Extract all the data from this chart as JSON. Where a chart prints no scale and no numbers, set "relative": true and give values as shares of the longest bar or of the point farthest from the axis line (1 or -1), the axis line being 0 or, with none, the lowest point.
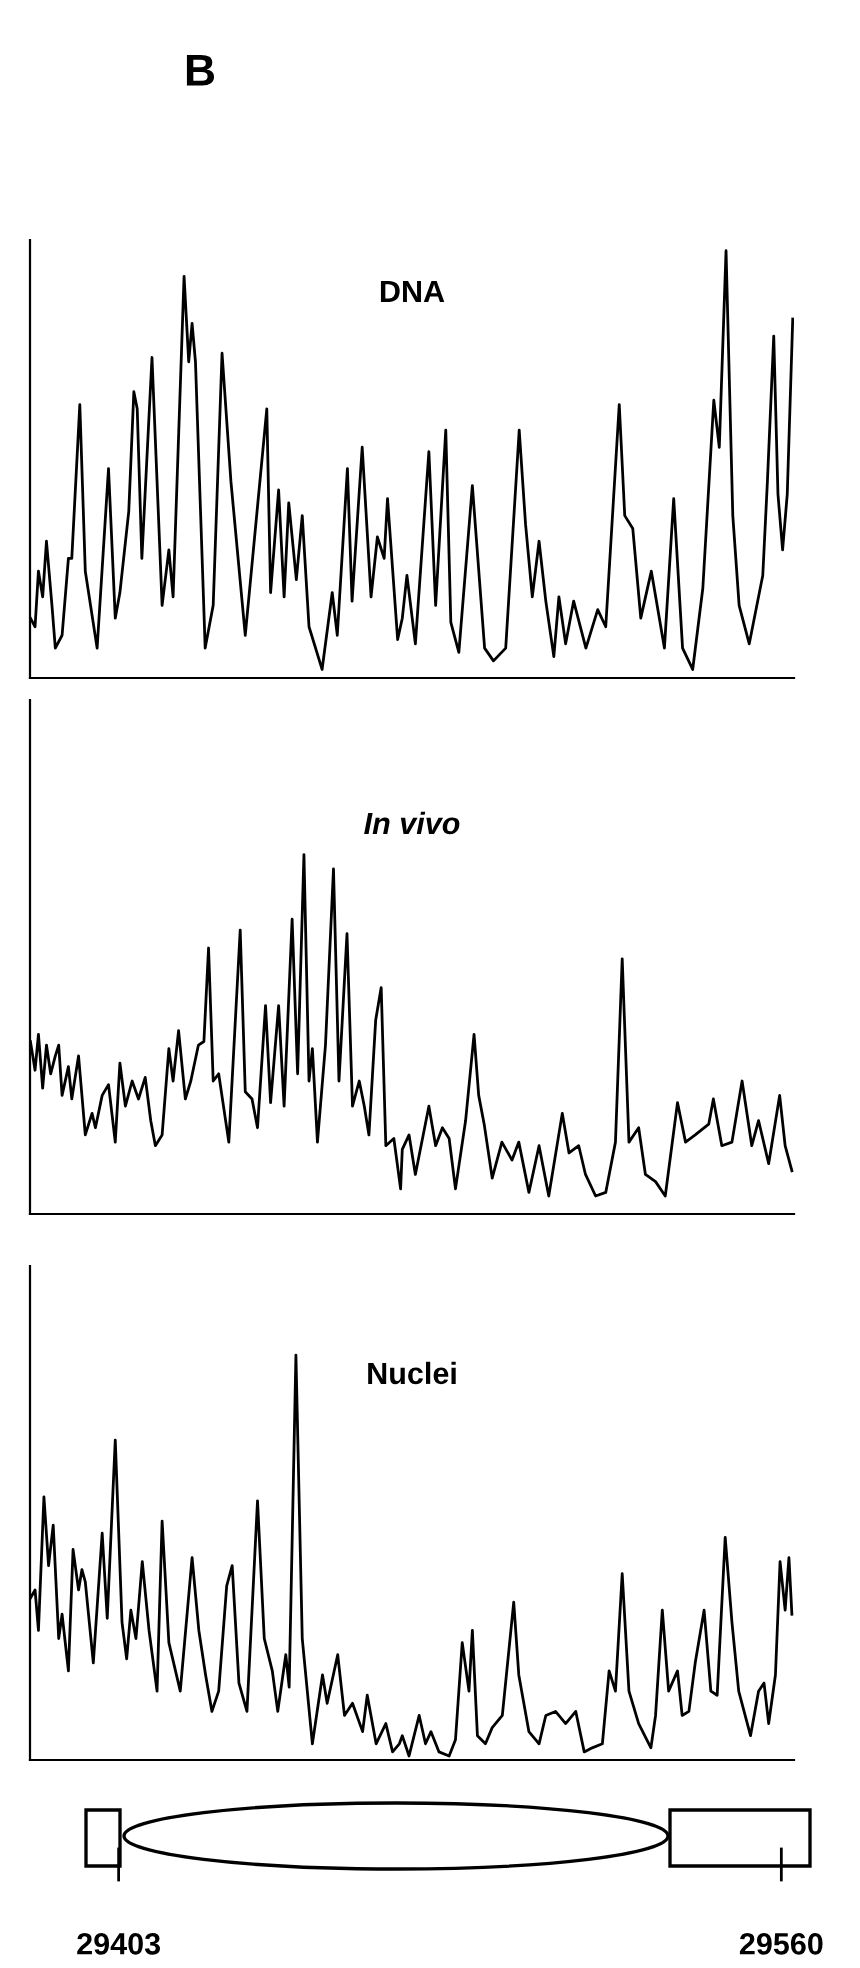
{
  "chart_data": [
    {
      "type": "line",
      "title": "DNA",
      "annotations": [
        "B"
      ],
      "relative": true,
      "xlim": [
        29382,
        29563
      ],
      "tick_labels": false,
      "grid": false,
      "marker": "none",
      "line_style": "solid",
      "x": [
        29382.1,
        29383.2,
        29384.0,
        29385.0,
        29385.9,
        29387.2,
        29388.0,
        29389.6,
        29391.1,
        29391.9,
        29393.8,
        29395.1,
        29397.9,
        29400.6,
        29402.2,
        29403.3,
        29405.4,
        29406.6,
        29407.4,
        29408.5,
        29410.9,
        29413.3,
        29414.9,
        29415.9,
        29418.5,
        29419.6,
        29420.4,
        29421.2,
        29423.5,
        29425.4,
        29427.5,
        29429.6,
        29433.0,
        29438.1,
        29439.0,
        29440.9,
        29442.2,
        29443.3,
        29445.1,
        29446.5,
        29448.1,
        29451.2,
        29453.6,
        29454.8,
        29457.2,
        29458.3,
        29460.7,
        29462.8,
        29464.3,
        29465.9,
        29466.7,
        29469.1,
        29470.2,
        29471.3,
        29473.3,
        29476.5,
        29478.1,
        29480.5,
        29481.7,
        29483.6,
        29486.8,
        29489.7,
        29491.8,
        29494.7,
        29497.9,
        29499.4,
        29501.0,
        29502.6,
        29504.2,
        29506.1,
        29507.3,
        29508.9,
        29510.8,
        29513.7,
        29516.5,
        29518.4,
        29521.6,
        29522.9,
        29524.8,
        29526.7,
        29529.2,
        29532.3,
        29534.5,
        29536.6,
        29539.0,
        29541.4,
        29544.0,
        29545.3,
        29546.9,
        29548.5,
        29550.0,
        29552.4,
        29555.6,
        29556.7,
        29558.2,
        29559.2,
        29560.3,
        29561.4,
        29562.7
      ],
      "series": [
        {
          "color": "#000000",
          "values": [
            0.14,
            0.12,
            0.25,
            0.19,
            0.32,
            0.17,
            0.07,
            0.1,
            0.28,
            0.28,
            0.64,
            0.25,
            0.07,
            0.49,
            0.14,
            0.2,
            0.39,
            0.67,
            0.63,
            0.28,
            0.75,
            0.17,
            0.3,
            0.19,
            0.94,
            0.74,
            0.83,
            0.74,
            0.07,
            0.17,
            0.76,
            0.46,
            0.1,
            0.63,
            0.2,
            0.44,
            0.19,
            0.41,
            0.23,
            0.38,
            0.12,
            0.02,
            0.2,
            0.1,
            0.49,
            0.18,
            0.54,
            0.19,
            0.33,
            0.28,
            0.42,
            0.09,
            0.14,
            0.24,
            0.08,
            0.53,
            0.17,
            0.58,
            0.13,
            0.06,
            0.45,
            0.07,
            0.04,
            0.07,
            0.58,
            0.36,
            0.19,
            0.32,
            0.18,
            0.05,
            0.19,
            0.08,
            0.18,
            0.07,
            0.16,
            0.12,
            0.64,
            0.38,
            0.35,
            0.14,
            0.25,
            0.07,
            0.42,
            0.07,
            0.02,
            0.21,
            0.65,
            0.54,
            1.0,
            0.38,
            0.17,
            0.08,
            0.24,
            0.46,
            0.8,
            0.43,
            0.3,
            0.43,
            0.84
          ]
        }
      ]
    },
    {
      "type": "line",
      "title": "In vivo",
      "relative": true,
      "xlim": [
        29382,
        29563
      ],
      "tick_labels": false,
      "grid": false,
      "marker": "none",
      "line_style": "solid",
      "x": [
        29382.1,
        29383.2,
        29384.0,
        29385.0,
        29385.9,
        29386.9,
        29388.0,
        29388.8,
        29389.6,
        29391.1,
        29391.9,
        29393.5,
        29395.1,
        29396.7,
        29397.5,
        29399.1,
        29400.6,
        29402.2,
        29403.3,
        29404.6,
        29406.2,
        29407.7,
        29409.3,
        29410.6,
        29411.7,
        29413.3,
        29414.9,
        29415.9,
        29417.2,
        29418.8,
        29420.1,
        29421.9,
        29423.2,
        29424.3,
        29425.4,
        29426.7,
        29429.1,
        29431.8,
        29433.0,
        29434.6,
        29435.9,
        29437.8,
        29439.0,
        29440.9,
        29442.2,
        29444.1,
        29445.4,
        29446.9,
        29448.1,
        29448.9,
        29450.1,
        29452.0,
        29453.9,
        29455.2,
        29457.1,
        29458.4,
        29460.0,
        29461.2,
        29462.3,
        29463.9,
        29465.2,
        29466.3,
        29468.2,
        29469.8,
        29470.2,
        29471.8,
        29473.3,
        29476.5,
        29478.1,
        29479.7,
        29481.3,
        29482.8,
        29485.2,
        29487.2,
        29488.3,
        29489.6,
        29491.5,
        29493.8,
        29496.2,
        29497.8,
        29500.2,
        29502.6,
        29504.9,
        29508.1,
        29509.7,
        29512.0,
        29513.6,
        29516.0,
        29518.4,
        29520.7,
        29522.3,
        29523.9,
        29526.2,
        29527.8,
        29530.2,
        29532.5,
        29535.4,
        29537.3,
        29539.6,
        29542.8,
        29543.9,
        29545.9,
        29548.3,
        29550.7,
        29553.0,
        29554.6,
        29557.0,
        29559.6,
        29560.9,
        29562.5
      ],
      "series": [
        {
          "color": "#000000",
          "values": [
            0.48,
            0.4,
            0.5,
            0.35,
            0.47,
            0.39,
            0.44,
            0.47,
            0.33,
            0.41,
            0.32,
            0.44,
            0.22,
            0.28,
            0.24,
            0.33,
            0.36,
            0.2,
            0.42,
            0.3,
            0.37,
            0.32,
            0.38,
            0.26,
            0.19,
            0.22,
            0.46,
            0.37,
            0.51,
            0.32,
            0.37,
            0.47,
            0.48,
            0.74,
            0.37,
            0.39,
            0.2,
            0.79,
            0.34,
            0.32,
            0.24,
            0.58,
            0.31,
            0.58,
            0.3,
            0.82,
            0.39,
            1.0,
            0.37,
            0.46,
            0.2,
            0.47,
            0.96,
            0.37,
            0.78,
            0.3,
            0.37,
            0.3,
            0.22,
            0.54,
            0.63,
            0.19,
            0.21,
            0.07,
            0.18,
            0.22,
            0.11,
            0.3,
            0.19,
            0.24,
            0.21,
            0.07,
            0.26,
            0.5,
            0.33,
            0.25,
            0.1,
            0.2,
            0.15,
            0.2,
            0.06,
            0.19,
            0.05,
            0.28,
            0.17,
            0.19,
            0.11,
            0.05,
            0.06,
            0.2,
            0.71,
            0.2,
            0.24,
            0.11,
            0.09,
            0.05,
            0.31,
            0.2,
            0.22,
            0.25,
            0.32,
            0.19,
            0.2,
            0.37,
            0.19,
            0.26,
            0.14,
            0.33,
            0.19,
            0.12
          ]
        }
      ]
    },
    {
      "type": "line",
      "title": "Nuclei",
      "relative": true,
      "xlim": [
        29382,
        29563
      ],
      "xticks": [
        29403,
        29560
      ],
      "tick_labels": "x",
      "grid": false,
      "marker": "none",
      "line_style": "solid",
      "x": [
        29382.1,
        29383.2,
        29384.0,
        29385.3,
        29386.4,
        29387.5,
        29388.8,
        29389.6,
        29391.1,
        29392.2,
        29393.5,
        29394.3,
        29395.1,
        29397.0,
        29399.1,
        29400.3,
        29402.2,
        29403.8,
        29404.9,
        29405.9,
        29407.1,
        29408.6,
        29410.2,
        29412.1,
        29413.3,
        29414.9,
        29417.6,
        29420.4,
        29422.0,
        29423.6,
        29425.1,
        29426.7,
        29428.6,
        29429.9,
        29431.5,
        29433.4,
        29435.9,
        29437.5,
        29439.4,
        29440.7,
        29442.6,
        29443.4,
        29445.0,
        29446.5,
        29448.9,
        29451.3,
        29452.4,
        29454.9,
        29456.5,
        29458.4,
        29460.8,
        29461.9,
        29464.0,
        29466.3,
        29467.9,
        29469.5,
        29470.2,
        29471.8,
        29474.2,
        29475.7,
        29477.0,
        29478.9,
        29481.3,
        29482.8,
        29484.4,
        29486.0,
        29486.8,
        29488.0,
        29489.9,
        29491.5,
        29493.9,
        29496.6,
        29497.8,
        29500.2,
        29502.6,
        29504.2,
        29506.5,
        29508.9,
        29511.3,
        29513.3,
        29515.2,
        29517.6,
        29519.2,
        29520.7,
        29522.3,
        29523.9,
        29526.2,
        29529.1,
        29530.2,
        29531.8,
        29533.3,
        29535.4,
        29536.5,
        29538.1,
        29539.6,
        29541.7,
        29543.3,
        29544.8,
        29546.7,
        29548.3,
        29549.9,
        29552.7,
        29554.6,
        29555.9,
        29557.0,
        29558.6,
        29559.7,
        29560.9,
        29561.8,
        29562.5
      ],
      "series": [
        {
          "color": "#000000",
          "values": [
            0.4,
            0.42,
            0.32,
            0.65,
            0.48,
            0.58,
            0.3,
            0.36,
            0.22,
            0.52,
            0.42,
            0.47,
            0.44,
            0.24,
            0.56,
            0.35,
            0.79,
            0.34,
            0.25,
            0.37,
            0.3,
            0.49,
            0.32,
            0.17,
            0.59,
            0.29,
            0.17,
            0.5,
            0.32,
            0.21,
            0.12,
            0.17,
            0.43,
            0.48,
            0.19,
            0.12,
            0.64,
            0.3,
            0.22,
            0.12,
            0.26,
            0.18,
            1.0,
            0.3,
            0.04,
            0.21,
            0.14,
            0.26,
            0.11,
            0.14,
            0.07,
            0.16,
            0.04,
            0.09,
            0.02,
            0.04,
            0.06,
            0.01,
            0.11,
            0.04,
            0.07,
            0.02,
            0.01,
            0.05,
            0.29,
            0.17,
            0.32,
            0.06,
            0.04,
            0.08,
            0.11,
            0.39,
            0.21,
            0.07,
            0.04,
            0.11,
            0.12,
            0.09,
            0.12,
            0.02,
            0.03,
            0.04,
            0.22,
            0.17,
            0.46,
            0.17,
            0.09,
            0.03,
            0.11,
            0.37,
            0.17,
            0.22,
            0.11,
            0.12,
            0.24,
            0.37,
            0.17,
            0.16,
            0.55,
            0.34,
            0.17,
            0.06,
            0.17,
            0.19,
            0.09,
            0.21,
            0.49,
            0.37,
            0.5,
            0.36
          ]
        }
      ]
    }
  ]
}
